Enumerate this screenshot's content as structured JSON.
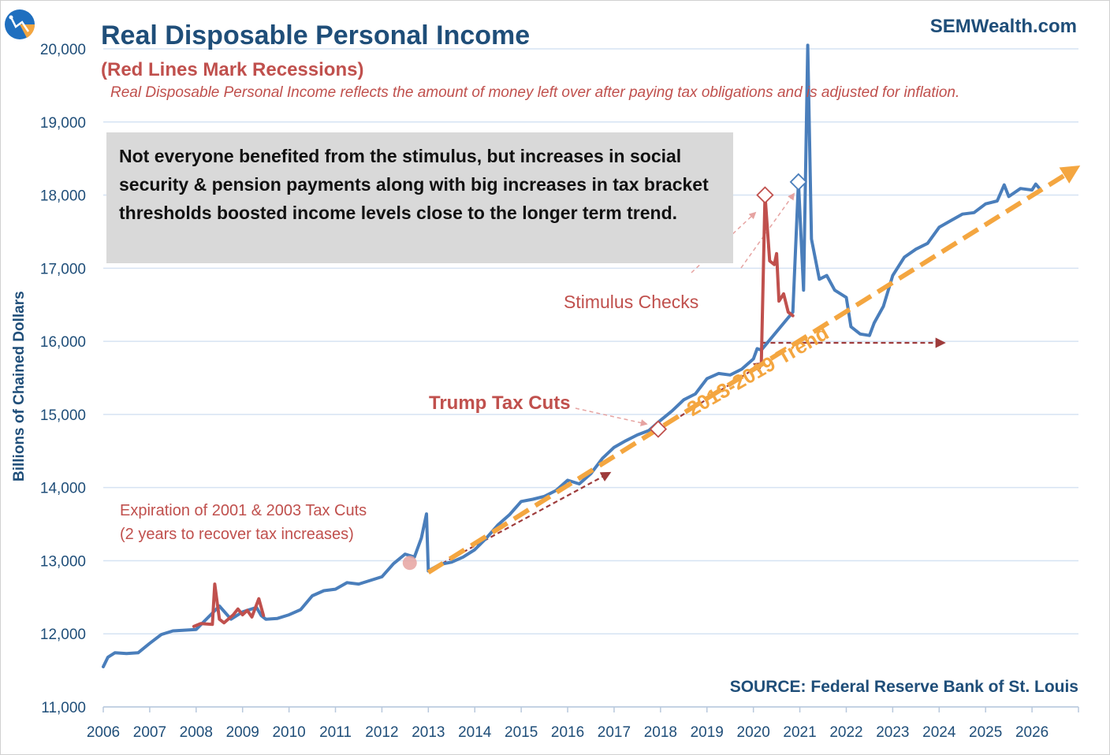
{
  "header": {
    "title": "Real Disposable Personal Income",
    "subtitle": "(Red Lines Mark Recessions)",
    "description": "Real Disposable Personal Income reflects the amount of money left over after paying tax obligations and is adjusted for inflation.",
    "brand": "SEMWealth.com"
  },
  "source": "SOURCE:  Federal Reserve Bank of St. Louis",
  "callout": "Not everyone benefited from the stimulus, but increases in social security & pension payments along with big increases in tax bracket thresholds boosted income levels close to the longer term trend.",
  "annotations": {
    "stimulus": "Stimulus Checks",
    "trump": "Trump Tax Cuts",
    "expiration_line1": "Expiration of 2001 & 2003 Tax Cuts",
    "expiration_line2": "(2 years to recover tax increases)",
    "trend": "2013-2019 Trend"
  },
  "colors": {
    "series": "#4a7ebb",
    "recession": "#c0504d",
    "trend": "#f4a640",
    "grid": "#d6e3f3",
    "text": "#1f4e79"
  },
  "chart_data": {
    "type": "line",
    "title": "Real Disposable Personal Income",
    "xlabel": "",
    "ylabel": "Billions of Chained Dollars",
    "xlim": [
      2006,
      2027
    ],
    "ylim": [
      11000,
      20000
    ],
    "y_ticks": [
      11000,
      12000,
      13000,
      14000,
      15000,
      16000,
      17000,
      18000,
      19000,
      20000
    ],
    "y_tick_labels": [
      "11,000",
      "12,000",
      "13,000",
      "14,000",
      "15,000",
      "16,000",
      "17,000",
      "18,000",
      "19,000",
      "20,000"
    ],
    "x_ticks": [
      "2006",
      "2007",
      "2008",
      "2009",
      "2010",
      "2011",
      "2012",
      "2013",
      "2014",
      "2015",
      "2016",
      "2017",
      "2018",
      "2019",
      "2020",
      "2021",
      "2022",
      "2023",
      "2024",
      "2025",
      "2026"
    ],
    "series": [
      {
        "name": "Real Disposable Personal Income",
        "points": [
          [
            2006.0,
            11550
          ],
          [
            2006.1,
            11680
          ],
          [
            2006.25,
            11740
          ],
          [
            2006.5,
            11730
          ],
          [
            2006.75,
            11740
          ],
          [
            2007.0,
            11870
          ],
          [
            2007.25,
            11990
          ],
          [
            2007.5,
            12040
          ],
          [
            2007.75,
            12050
          ],
          [
            2008.0,
            12060
          ],
          [
            2008.5,
            12380
          ],
          [
            2008.75,
            12200
          ],
          [
            2009.0,
            12300
          ],
          [
            2009.3,
            12360
          ],
          [
            2009.4,
            12250
          ],
          [
            2009.5,
            12200
          ],
          [
            2009.75,
            12210
          ],
          [
            2010.0,
            12260
          ],
          [
            2010.25,
            12330
          ],
          [
            2010.5,
            12520
          ],
          [
            2010.75,
            12590
          ],
          [
            2011.0,
            12610
          ],
          [
            2011.25,
            12700
          ],
          [
            2011.5,
            12680
          ],
          [
            2011.75,
            12730
          ],
          [
            2012.0,
            12780
          ],
          [
            2012.25,
            12960
          ],
          [
            2012.5,
            13090
          ],
          [
            2012.7,
            13050
          ],
          [
            2012.85,
            13310
          ],
          [
            2012.96,
            13640
          ],
          [
            2013.0,
            12860
          ],
          [
            2013.25,
            12950
          ],
          [
            2013.5,
            12980
          ],
          [
            2013.75,
            13050
          ],
          [
            2014.0,
            13150
          ],
          [
            2014.25,
            13310
          ],
          [
            2014.5,
            13490
          ],
          [
            2014.75,
            13630
          ],
          [
            2015.0,
            13810
          ],
          [
            2015.25,
            13840
          ],
          [
            2015.5,
            13880
          ],
          [
            2015.75,
            13960
          ],
          [
            2016.0,
            14100
          ],
          [
            2016.25,
            14050
          ],
          [
            2016.5,
            14190
          ],
          [
            2016.75,
            14400
          ],
          [
            2017.0,
            14550
          ],
          [
            2017.25,
            14640
          ],
          [
            2017.5,
            14720
          ],
          [
            2017.75,
            14780
          ],
          [
            2018.0,
            14920
          ],
          [
            2018.25,
            15050
          ],
          [
            2018.5,
            15200
          ],
          [
            2018.75,
            15280
          ],
          [
            2019.0,
            15490
          ],
          [
            2019.25,
            15560
          ],
          [
            2019.5,
            15540
          ],
          [
            2019.75,
            15620
          ],
          [
            2020.0,
            15760
          ],
          [
            2020.08,
            15900
          ],
          [
            2020.17,
            15880
          ],
          [
            2020.85,
            16400
          ],
          [
            2020.97,
            18180
          ],
          [
            2021.08,
            16700
          ],
          [
            2021.17,
            20050
          ],
          [
            2021.25,
            17400
          ],
          [
            2021.42,
            16850
          ],
          [
            2021.58,
            16900
          ],
          [
            2021.75,
            16700
          ],
          [
            2022.0,
            16600
          ],
          [
            2022.1,
            16200
          ],
          [
            2022.3,
            16100
          ],
          [
            2022.5,
            16080
          ],
          [
            2022.6,
            16250
          ],
          [
            2022.8,
            16480
          ],
          [
            2023.0,
            16900
          ],
          [
            2023.25,
            17150
          ],
          [
            2023.5,
            17260
          ],
          [
            2023.75,
            17340
          ],
          [
            2024.0,
            17560
          ],
          [
            2024.25,
            17650
          ],
          [
            2024.5,
            17740
          ],
          [
            2024.75,
            17760
          ],
          [
            2025.0,
            17880
          ],
          [
            2025.25,
            17920
          ],
          [
            2025.4,
            18140
          ],
          [
            2025.5,
            17980
          ],
          [
            2025.75,
            18090
          ],
          [
            2026.0,
            18070
          ],
          [
            2026.08,
            18150
          ],
          [
            2026.15,
            18100
          ]
        ]
      },
      {
        "name": "Recession 2008-2009",
        "points": [
          [
            2007.95,
            12100
          ],
          [
            2008.1,
            12140
          ],
          [
            2008.35,
            12130
          ],
          [
            2008.4,
            12680
          ],
          [
            2008.5,
            12200
          ],
          [
            2008.6,
            12150
          ],
          [
            2008.8,
            12260
          ],
          [
            2008.9,
            12340
          ],
          [
            2009.0,
            12260
          ],
          [
            2009.1,
            12320
          ],
          [
            2009.2,
            12230
          ],
          [
            2009.35,
            12480
          ],
          [
            2009.45,
            12250
          ]
        ]
      },
      {
        "name": "Recession 2020",
        "points": [
          [
            2020.17,
            15700
          ],
          [
            2020.25,
            18000
          ],
          [
            2020.35,
            17100
          ],
          [
            2020.45,
            17050
          ],
          [
            2020.5,
            17200
          ],
          [
            2020.55,
            16550
          ],
          [
            2020.65,
            16650
          ],
          [
            2020.75,
            16400
          ],
          [
            2020.85,
            16350
          ]
        ]
      }
    ],
    "trend": {
      "name": "2013-2019 Trend",
      "start": [
        2013.0,
        12840
      ],
      "end": [
        2026.9,
        18350
      ]
    },
    "markers": [
      {
        "label": "Trump Tax Cuts",
        "at": [
          2017.95,
          14800
        ]
      },
      {
        "label": "Stimulus Checks",
        "at": [
          2020.25,
          18000
        ]
      },
      {
        "label": "Stimulus Checks",
        "at": [
          2020.97,
          18180
        ]
      },
      {
        "label": "Expiration of 2001 & 2003 Tax Cuts",
        "at": [
          2012.6,
          12970
        ]
      }
    ],
    "reference_arrows": [
      {
        "start": [
          2013.0,
          12860
        ],
        "end": [
          2016.9,
          14200
        ]
      },
      {
        "start": [
          2018.0,
          14800
        ],
        "end": [
          2020.2,
          15700
        ]
      },
      {
        "start": [
          2020.2,
          15980
        ],
        "end": [
          2024.1,
          15980
        ]
      }
    ]
  }
}
